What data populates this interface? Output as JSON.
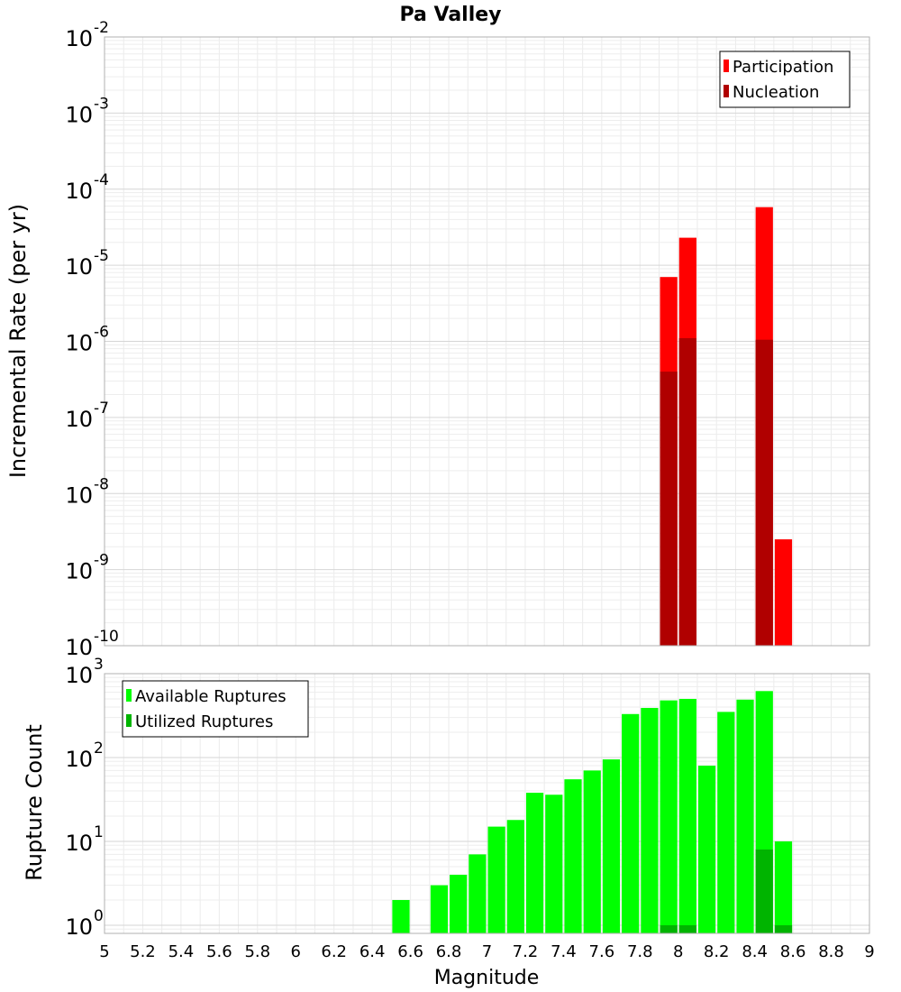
{
  "chart_data": [
    {
      "type": "bar",
      "title": "Pa Valley",
      "xlabel": "",
      "ylabel": "Incremental Rate (per yr)",
      "yscale": "log",
      "xlim": [
        5,
        9
      ],
      "ylim": [
        1e-10,
        0.01
      ],
      "grid": true,
      "legend_position": "top-right",
      "ytick_labels": [
        {
          "base": "10",
          "exp": "-10"
        },
        {
          "base": "10",
          "exp": "-9"
        },
        {
          "base": "10",
          "exp": "-8"
        },
        {
          "base": "10",
          "exp": "-7"
        },
        {
          "base": "10",
          "exp": "-6"
        },
        {
          "base": "10",
          "exp": "-5"
        },
        {
          "base": "10",
          "exp": "-4"
        },
        {
          "base": "10",
          "exp": "-3"
        },
        {
          "base": "10",
          "exp": "-2"
        }
      ],
      "series": [
        {
          "name": "Participation",
          "color": "#ff0000",
          "points": [
            {
              "x": 7.95,
              "y": 7e-06
            },
            {
              "x": 8.05,
              "y": 2.3e-05
            },
            {
              "x": 8.45,
              "y": 5.8e-05
            },
            {
              "x": 8.55,
              "y": 2.5e-09
            }
          ]
        },
        {
          "name": "Nucleation",
          "color": "#b00000",
          "points": [
            {
              "x": 7.95,
              "y": 4e-07
            },
            {
              "x": 8.05,
              "y": 1.1e-06
            },
            {
              "x": 8.45,
              "y": 1.05e-06
            }
          ]
        }
      ]
    },
    {
      "type": "bar",
      "title": "",
      "xlabel": "Magnitude",
      "ylabel": "Rupture Count",
      "yscale": "log",
      "xlim": [
        5,
        9
      ],
      "ylim": [
        0.8,
        1000
      ],
      "grid": true,
      "legend_position": "top-left",
      "xtick_labels": [
        "5",
        "5.2",
        "5.4",
        "5.6",
        "5.8",
        "6",
        "6.2",
        "6.4",
        "6.6",
        "6.8",
        "7",
        "7.2",
        "7.4",
        "7.6",
        "7.8",
        "8",
        "8.2",
        "8.4",
        "8.6",
        "8.8",
        "9"
      ],
      "ytick_labels": [
        {
          "base": "10",
          "exp": "0"
        },
        {
          "base": "10",
          "exp": "1"
        },
        {
          "base": "10",
          "exp": "2"
        },
        {
          "base": "10",
          "exp": "3"
        }
      ],
      "series": [
        {
          "name": "Available Ruptures",
          "color": "#00ff00",
          "points": [
            {
              "x": 6.55,
              "y": 2
            },
            {
              "x": 6.75,
              "y": 3
            },
            {
              "x": 6.85,
              "y": 4
            },
            {
              "x": 6.95,
              "y": 7
            },
            {
              "x": 7.05,
              "y": 15
            },
            {
              "x": 7.15,
              "y": 18
            },
            {
              "x": 7.25,
              "y": 38
            },
            {
              "x": 7.35,
              "y": 36
            },
            {
              "x": 7.45,
              "y": 55
            },
            {
              "x": 7.55,
              "y": 70
            },
            {
              "x": 7.65,
              "y": 95
            },
            {
              "x": 7.75,
              "y": 330
            },
            {
              "x": 7.85,
              "y": 390
            },
            {
              "x": 7.95,
              "y": 480
            },
            {
              "x": 8.05,
              "y": 500
            },
            {
              "x": 8.15,
              "y": 80
            },
            {
              "x": 8.25,
              "y": 350
            },
            {
              "x": 8.35,
              "y": 490
            },
            {
              "x": 8.45,
              "y": 620
            },
            {
              "x": 8.55,
              "y": 10
            }
          ]
        },
        {
          "name": "Utilized Ruptures",
          "color": "#00b400",
          "points": [
            {
              "x": 7.95,
              "y": 1
            },
            {
              "x": 8.05,
              "y": 1
            },
            {
              "x": 8.45,
              "y": 8
            },
            {
              "x": 8.55,
              "y": 1
            }
          ]
        }
      ]
    }
  ]
}
